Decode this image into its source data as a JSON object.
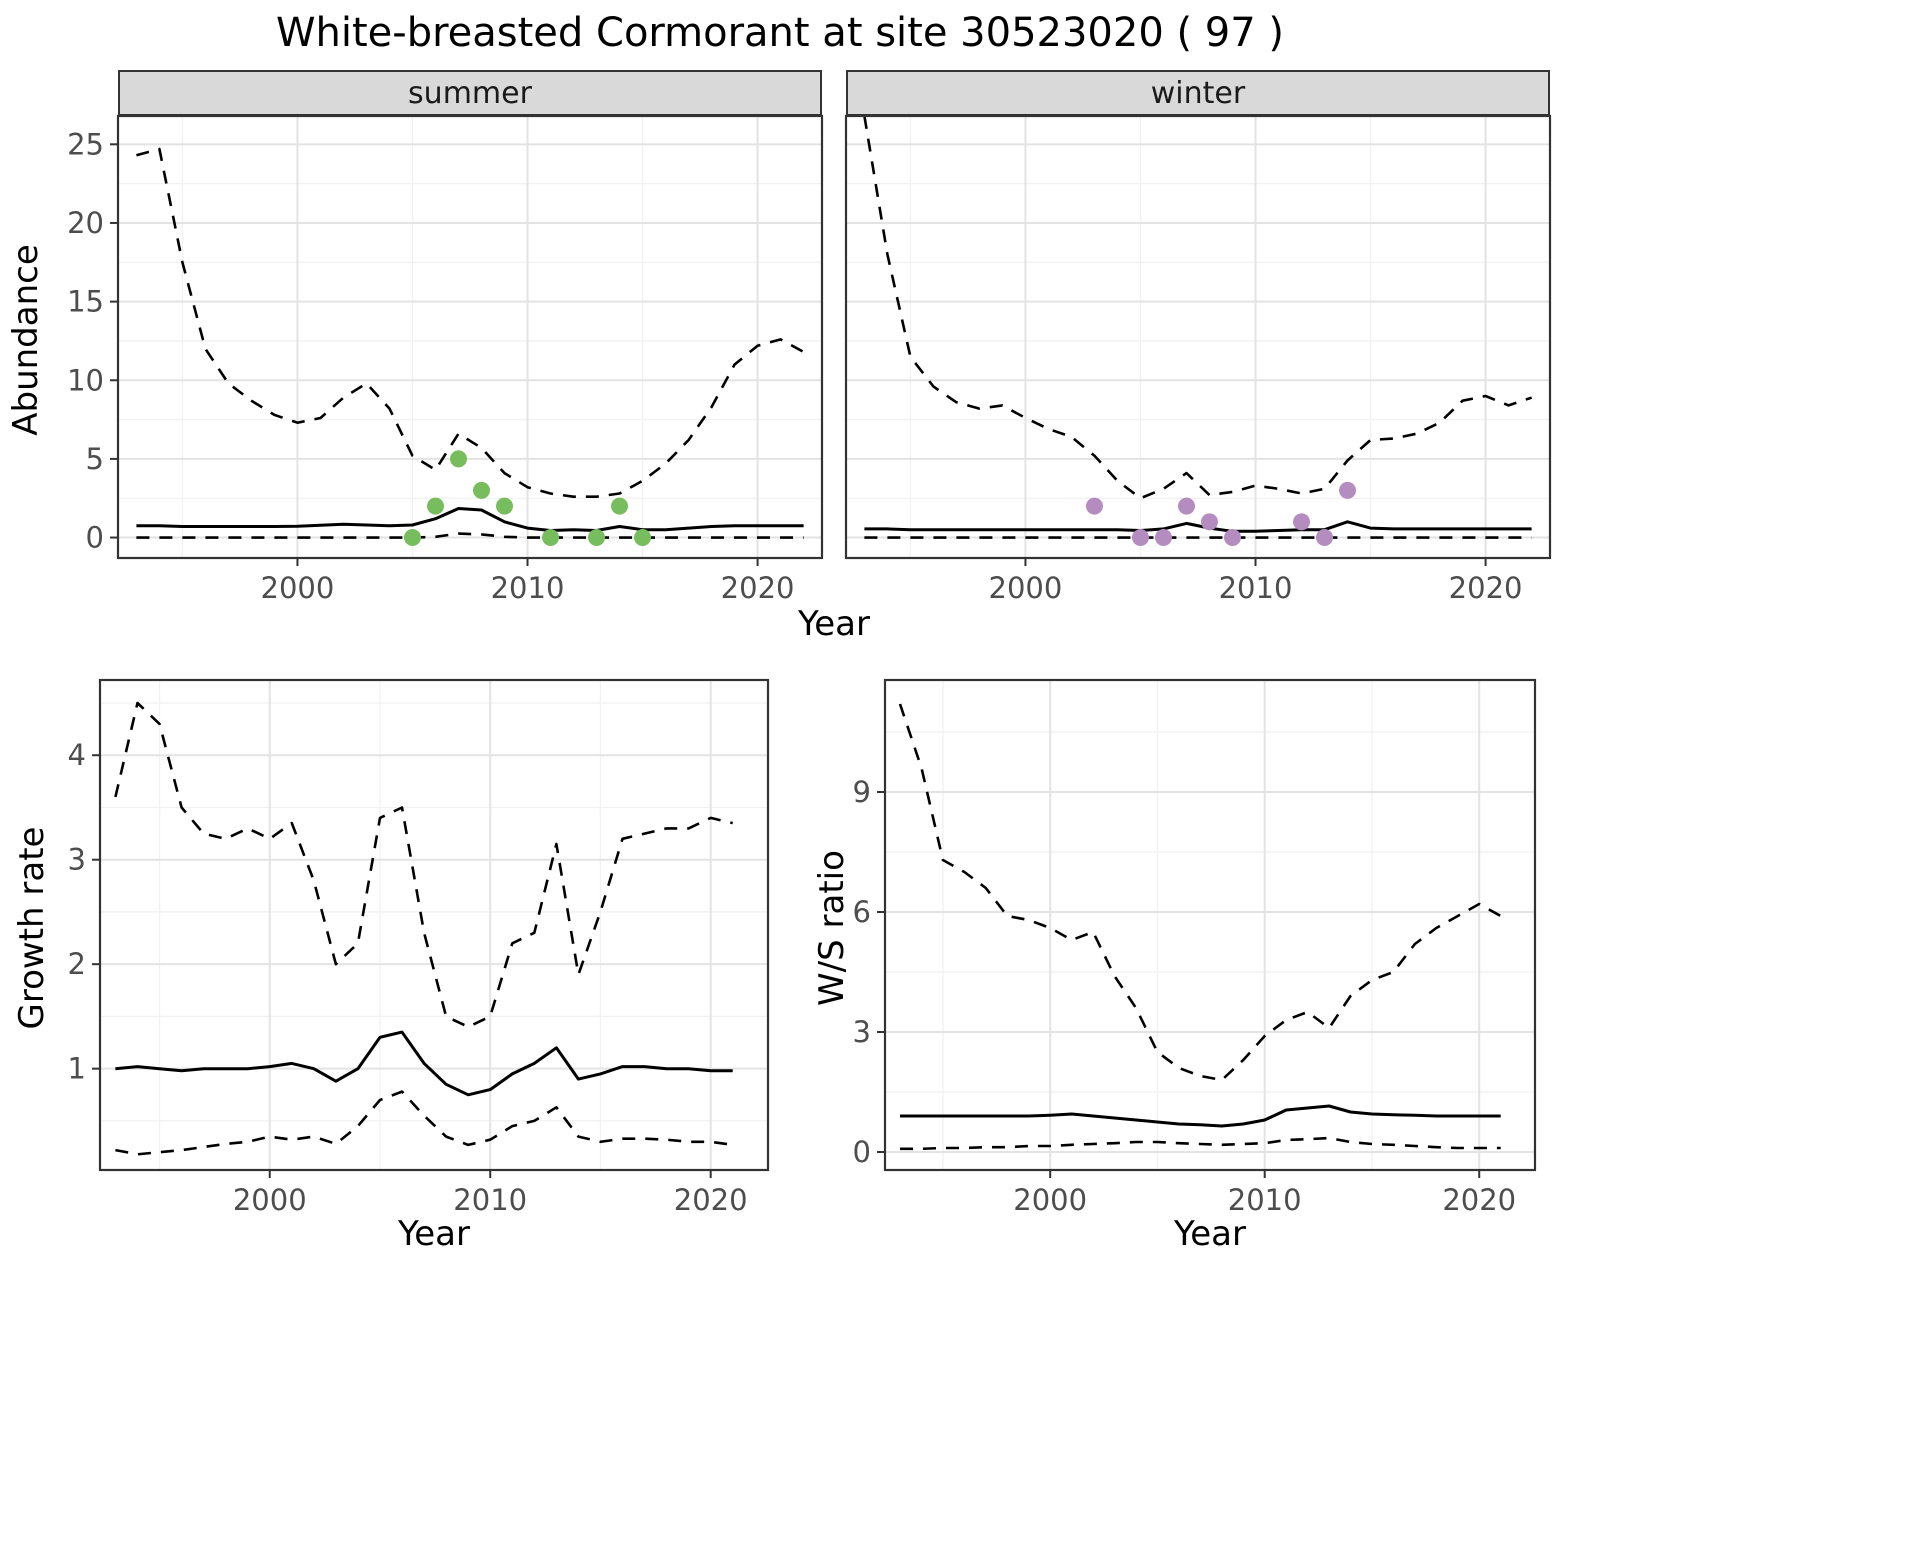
{
  "title": "White-breasted Cormorant at site 30523020 ( 97 )",
  "facets": {
    "left": "summer",
    "right": "winter"
  },
  "axis": {
    "top_ylabel": "Abundance",
    "top_xlabel": "Year",
    "bottom_left_ylabel": "Growth rate",
    "bottom_left_xlabel": "Year",
    "bottom_right_ylabel": "W/S ratio",
    "bottom_right_xlabel": "Year"
  },
  "theme": {
    "panel_bg": "#ffffff",
    "grid_major": "#e3e3e3",
    "grid_minor": "#f1f1f1",
    "line": "#000000",
    "border": "#333333",
    "tick": "#333333",
    "tick_label": "#4d4d4d",
    "strip_bg": "#d9d9d9",
    "summer_point_color": "#77bd5d",
    "winter_point_color": "#b48cc0"
  },
  "chart_data": [
    {
      "type": "line",
      "panel": "abundance-summer",
      "facet": "summer",
      "xlabel": "Year",
      "ylabel": "Abundance",
      "xlim": [
        1992.2,
        2022.8
      ],
      "ylim": [
        -1.3,
        26.8
      ],
      "xticks": [
        2000,
        2010,
        2020
      ],
      "yticks": [
        0,
        5,
        10,
        15,
        20,
        25
      ],
      "grid": true,
      "x": [
        1993,
        1994,
        1995,
        1996,
        1997,
        1998,
        1999,
        2000,
        2001,
        2002,
        2003,
        2004,
        2005,
        2006,
        2007,
        2008,
        2009,
        2010,
        2011,
        2012,
        2013,
        2014,
        2015,
        2016,
        2017,
        2018,
        2019,
        2020,
        2021,
        2022
      ],
      "series": [
        {
          "name": "upper_95ci",
          "style": "dashed",
          "values": [
            24.3,
            24.7,
            17.5,
            12.0,
            9.8,
            8.7,
            7.8,
            7.3,
            7.6,
            8.9,
            9.8,
            8.2,
            5.2,
            4.3,
            6.6,
            5.7,
            4.1,
            3.2,
            2.8,
            2.6,
            2.6,
            2.8,
            3.6,
            4.7,
            6.2,
            8.3,
            11.0,
            12.2,
            12.6,
            11.8
          ]
        },
        {
          "name": "estimate",
          "style": "solid",
          "values": [
            0.75,
            0.75,
            0.7,
            0.7,
            0.7,
            0.7,
            0.7,
            0.72,
            0.78,
            0.85,
            0.8,
            0.75,
            0.8,
            1.2,
            1.85,
            1.75,
            1.0,
            0.6,
            0.45,
            0.5,
            0.45,
            0.7,
            0.5,
            0.5,
            0.6,
            0.7,
            0.75,
            0.75,
            0.75,
            0.75
          ]
        },
        {
          "name": "lower_95ci",
          "style": "dashed",
          "values": [
            0,
            0,
            0,
            0,
            0,
            0,
            0,
            0,
            0,
            0,
            0,
            0,
            0,
            0.05,
            0.25,
            0.2,
            0.05,
            0,
            0,
            0,
            0,
            0,
            0,
            0,
            0,
            0,
            0,
            0,
            0,
            0
          ]
        }
      ],
      "points": {
        "name": "observed-counts-summer",
        "color": "#77bd5d",
        "data": [
          [
            2005,
            0
          ],
          [
            2006,
            2
          ],
          [
            2007,
            5
          ],
          [
            2008,
            3
          ],
          [
            2009,
            2
          ],
          [
            2011,
            0
          ],
          [
            2013,
            0
          ],
          [
            2014,
            2
          ],
          [
            2015,
            0
          ]
        ]
      }
    },
    {
      "type": "line",
      "panel": "abundance-winter",
      "facet": "winter",
      "xlabel": "Year",
      "ylabel": "Abundance",
      "xlim": [
        1992.2,
        2022.8
      ],
      "ylim": [
        -1.3,
        26.8
      ],
      "xticks": [
        2000,
        2010,
        2020
      ],
      "yticks": [
        0,
        5,
        10,
        15,
        20,
        25
      ],
      "grid": true,
      "x": [
        1993,
        1994,
        1995,
        1996,
        1997,
        1998,
        1999,
        2000,
        2001,
        2002,
        2003,
        2004,
        2005,
        2006,
        2007,
        2008,
        2009,
        2010,
        2011,
        2012,
        2013,
        2014,
        2015,
        2016,
        2017,
        2018,
        2019,
        2020,
        2021,
        2022
      ],
      "series": [
        {
          "name": "upper_95ci",
          "style": "dashed",
          "values": [
            26.8,
            18.0,
            11.5,
            9.6,
            8.6,
            8.2,
            8.4,
            7.6,
            6.9,
            6.4,
            5.2,
            3.6,
            2.5,
            3.1,
            4.1,
            2.7,
            2.9,
            3.3,
            3.1,
            2.8,
            3.1,
            4.9,
            6.2,
            6.3,
            6.6,
            7.3,
            8.7,
            9.0,
            8.4,
            8.9
          ]
        },
        {
          "name": "estimate",
          "style": "solid",
          "values": [
            0.55,
            0.55,
            0.5,
            0.5,
            0.5,
            0.5,
            0.5,
            0.5,
            0.5,
            0.5,
            0.5,
            0.5,
            0.45,
            0.55,
            0.9,
            0.6,
            0.4,
            0.4,
            0.45,
            0.5,
            0.5,
            1.0,
            0.6,
            0.55,
            0.55,
            0.55,
            0.55,
            0.55,
            0.55,
            0.55
          ]
        },
        {
          "name": "lower_95ci",
          "style": "dashed",
          "values": [
            0,
            0,
            0,
            0,
            0,
            0,
            0,
            0,
            0,
            0,
            0,
            0,
            0,
            0,
            0,
            0,
            0,
            0,
            0,
            0,
            0,
            0,
            0,
            0,
            0,
            0,
            0,
            0,
            0,
            0
          ]
        }
      ],
      "points": {
        "name": "observed-counts-winter",
        "color": "#b48cc0",
        "data": [
          [
            2003,
            2
          ],
          [
            2005,
            0
          ],
          [
            2006,
            0
          ],
          [
            2007,
            2
          ],
          [
            2008,
            1
          ],
          [
            2009,
            0
          ],
          [
            2012,
            1
          ],
          [
            2013,
            0
          ],
          [
            2014,
            3
          ]
        ]
      }
    },
    {
      "type": "line",
      "panel": "growth-rate",
      "facet": "",
      "xlabel": "Year",
      "ylabel": "Growth rate",
      "xlim": [
        1992.3,
        2022.6
      ],
      "ylim": [
        0.03,
        4.72
      ],
      "xticks": [
        2000,
        2010,
        2020
      ],
      "yticks": [
        1,
        2,
        3,
        4
      ],
      "grid": true,
      "x": [
        1993,
        1994,
        1995,
        1996,
        1997,
        1998,
        1999,
        2000,
        2001,
        2002,
        2003,
        2004,
        2005,
        2006,
        2007,
        2008,
        2009,
        2010,
        2011,
        2012,
        2013,
        2014,
        2015,
        2016,
        2017,
        2018,
        2019,
        2020,
        2021
      ],
      "series": [
        {
          "name": "upper_95ci",
          "style": "dashed",
          "values": [
            3.6,
            4.5,
            4.3,
            3.5,
            3.25,
            3.2,
            3.3,
            3.2,
            3.35,
            2.8,
            2.0,
            2.2,
            3.4,
            3.5,
            2.3,
            1.5,
            1.4,
            1.5,
            2.2,
            2.3,
            3.15,
            1.9,
            2.5,
            3.2,
            3.25,
            3.3,
            3.3,
            3.4,
            3.35
          ]
        },
        {
          "name": "estimate",
          "style": "solid",
          "values": [
            1.0,
            1.02,
            1.0,
            0.98,
            1.0,
            1.0,
            1.0,
            1.02,
            1.05,
            1.0,
            0.88,
            1.0,
            1.3,
            1.35,
            1.05,
            0.85,
            0.75,
            0.8,
            0.95,
            1.05,
            1.2,
            0.9,
            0.95,
            1.02,
            1.02,
            1.0,
            1.0,
            0.98,
            0.98
          ]
        },
        {
          "name": "lower_95ci",
          "style": "dashed",
          "values": [
            0.22,
            0.18,
            0.2,
            0.22,
            0.25,
            0.28,
            0.3,
            0.35,
            0.32,
            0.35,
            0.28,
            0.45,
            0.7,
            0.78,
            0.55,
            0.35,
            0.27,
            0.32,
            0.45,
            0.5,
            0.63,
            0.35,
            0.3,
            0.33,
            0.33,
            0.32,
            0.3,
            0.3,
            0.27
          ]
        }
      ]
    },
    {
      "type": "line",
      "panel": "ws-ratio",
      "facet": "",
      "xlabel": "Year",
      "ylabel": "W/S ratio",
      "xlim": [
        1992.3,
        2022.6
      ],
      "ylim": [
        -0.45,
        11.8
      ],
      "xticks": [
        2000,
        2010,
        2020
      ],
      "yticks": [
        0,
        3,
        6,
        9
      ],
      "grid": true,
      "x": [
        1993,
        1994,
        1995,
        1996,
        1997,
        1998,
        1999,
        2000,
        2001,
        2002,
        2003,
        2004,
        2005,
        2006,
        2007,
        2008,
        2009,
        2010,
        2011,
        2012,
        2013,
        2014,
        2015,
        2016,
        2017,
        2018,
        2019,
        2020,
        2021
      ],
      "series": [
        {
          "name": "upper_95ci",
          "style": "dashed",
          "values": [
            11.2,
            9.6,
            7.3,
            7.0,
            6.6,
            5.9,
            5.8,
            5.6,
            5.3,
            5.5,
            4.4,
            3.6,
            2.5,
            2.1,
            1.9,
            1.8,
            2.3,
            2.9,
            3.3,
            3.5,
            3.1,
            3.9,
            4.3,
            4.5,
            5.2,
            5.6,
            5.9,
            6.2,
            5.9
          ]
        },
        {
          "name": "estimate",
          "style": "solid",
          "values": [
            0.9,
            0.9,
            0.9,
            0.9,
            0.9,
            0.9,
            0.9,
            0.92,
            0.95,
            0.9,
            0.85,
            0.8,
            0.75,
            0.7,
            0.68,
            0.65,
            0.7,
            0.8,
            1.05,
            1.1,
            1.15,
            1.0,
            0.95,
            0.93,
            0.92,
            0.9,
            0.9,
            0.9,
            0.9
          ]
        },
        {
          "name": "lower_95ci",
          "style": "dashed",
          "values": [
            0.08,
            0.08,
            0.1,
            0.1,
            0.12,
            0.12,
            0.15,
            0.15,
            0.18,
            0.2,
            0.22,
            0.25,
            0.25,
            0.22,
            0.2,
            0.18,
            0.2,
            0.22,
            0.3,
            0.32,
            0.35,
            0.25,
            0.2,
            0.18,
            0.15,
            0.12,
            0.1,
            0.1,
            0.1
          ]
        }
      ]
    }
  ]
}
